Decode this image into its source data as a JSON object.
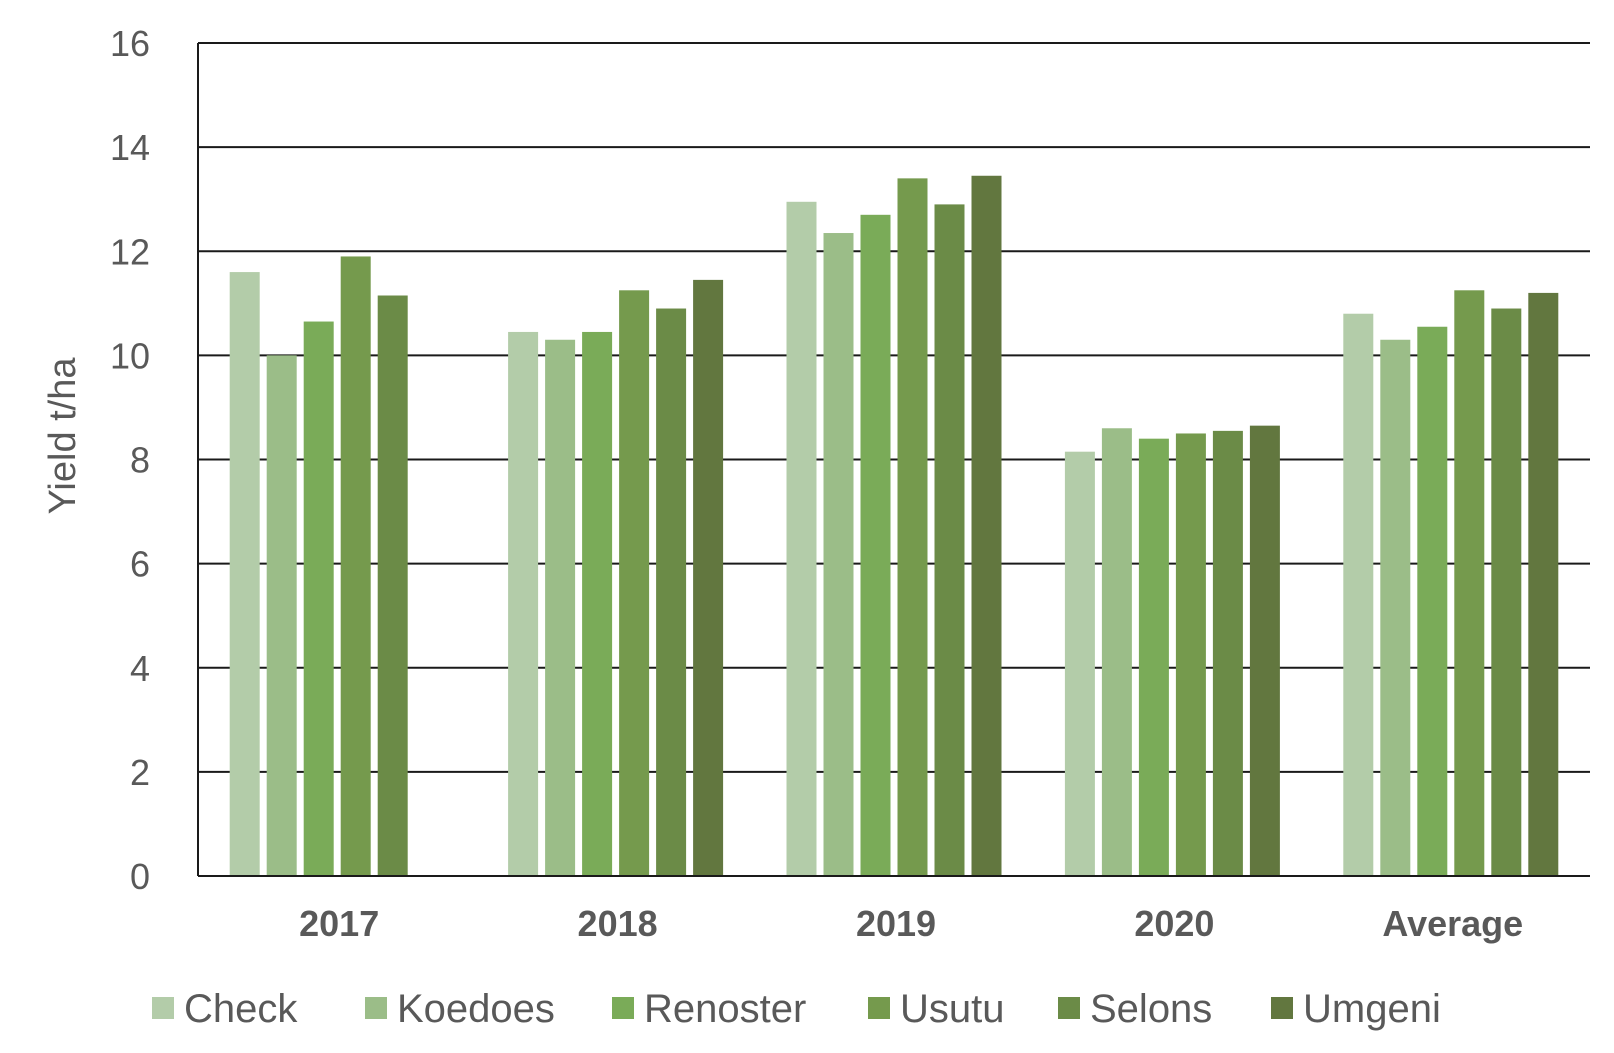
{
  "chart_data": {
    "type": "bar",
    "title": "",
    "xlabel": "",
    "ylabel": "Yield t/ha",
    "ylim": [
      0,
      16
    ],
    "yticks": [
      0,
      2,
      4,
      6,
      8,
      10,
      12,
      14,
      16
    ],
    "grid": true,
    "legend_position": "bottom",
    "categories": [
      "2017",
      "2018",
      "2019",
      "2020",
      "Average"
    ],
    "series": [
      {
        "name": "Check",
        "color": "#b3cca9",
        "values": [
          11.6,
          10.45,
          12.95,
          8.15,
          10.8
        ]
      },
      {
        "name": "Koedoes",
        "color": "#9bbd88",
        "values": [
          10.0,
          10.3,
          12.35,
          8.6,
          10.3
        ]
      },
      {
        "name": "Renoster",
        "color": "#7aab58",
        "values": [
          10.65,
          10.45,
          12.7,
          8.4,
          10.55
        ]
      },
      {
        "name": "Usutu",
        "color": "#759a4d",
        "values": [
          11.9,
          11.25,
          13.4,
          8.5,
          11.25
        ]
      },
      {
        "name": "Selons",
        "color": "#6b8b47",
        "values": [
          11.15,
          10.9,
          12.9,
          8.55,
          10.9
        ]
      },
      {
        "name": "Umgeni",
        "color": "#62773f",
        "values": [
          null,
          11.45,
          13.45,
          8.65,
          11.2
        ]
      }
    ]
  }
}
